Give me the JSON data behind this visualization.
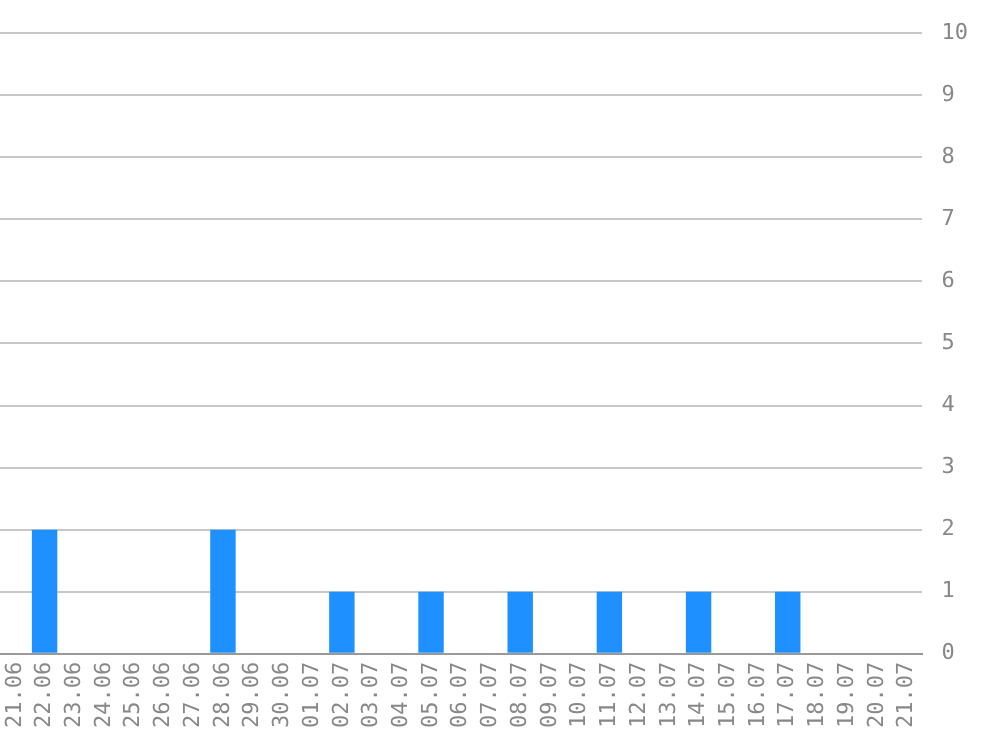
{
  "chart_data": {
    "type": "bar",
    "categories": [
      "21.06",
      "22.06",
      "23.06",
      "24.06",
      "25.06",
      "26.06",
      "27.06",
      "28.06",
      "29.06",
      "30.06",
      "01.07",
      "02.07",
      "03.07",
      "04.07",
      "05.07",
      "06.07",
      "07.07",
      "08.07",
      "09.07",
      "10.07",
      "11.07",
      "12.07",
      "13.07",
      "14.07",
      "15.07",
      "16.07",
      "17.07",
      "18.07",
      "19.07",
      "20.07",
      "21.07"
    ],
    "values": [
      0,
      2,
      0,
      0,
      0,
      0,
      0,
      2,
      0,
      0,
      0,
      1,
      0,
      0,
      1,
      0,
      0,
      1,
      0,
      0,
      1,
      0,
      0,
      1,
      0,
      0,
      1,
      0,
      0,
      0,
      0
    ],
    "color": "#1e90ff",
    "ylim": [
      0,
      10
    ],
    "yticks": [
      0,
      1,
      2,
      3,
      4,
      5,
      6,
      7,
      8,
      9,
      10
    ],
    "grid": "y"
  }
}
